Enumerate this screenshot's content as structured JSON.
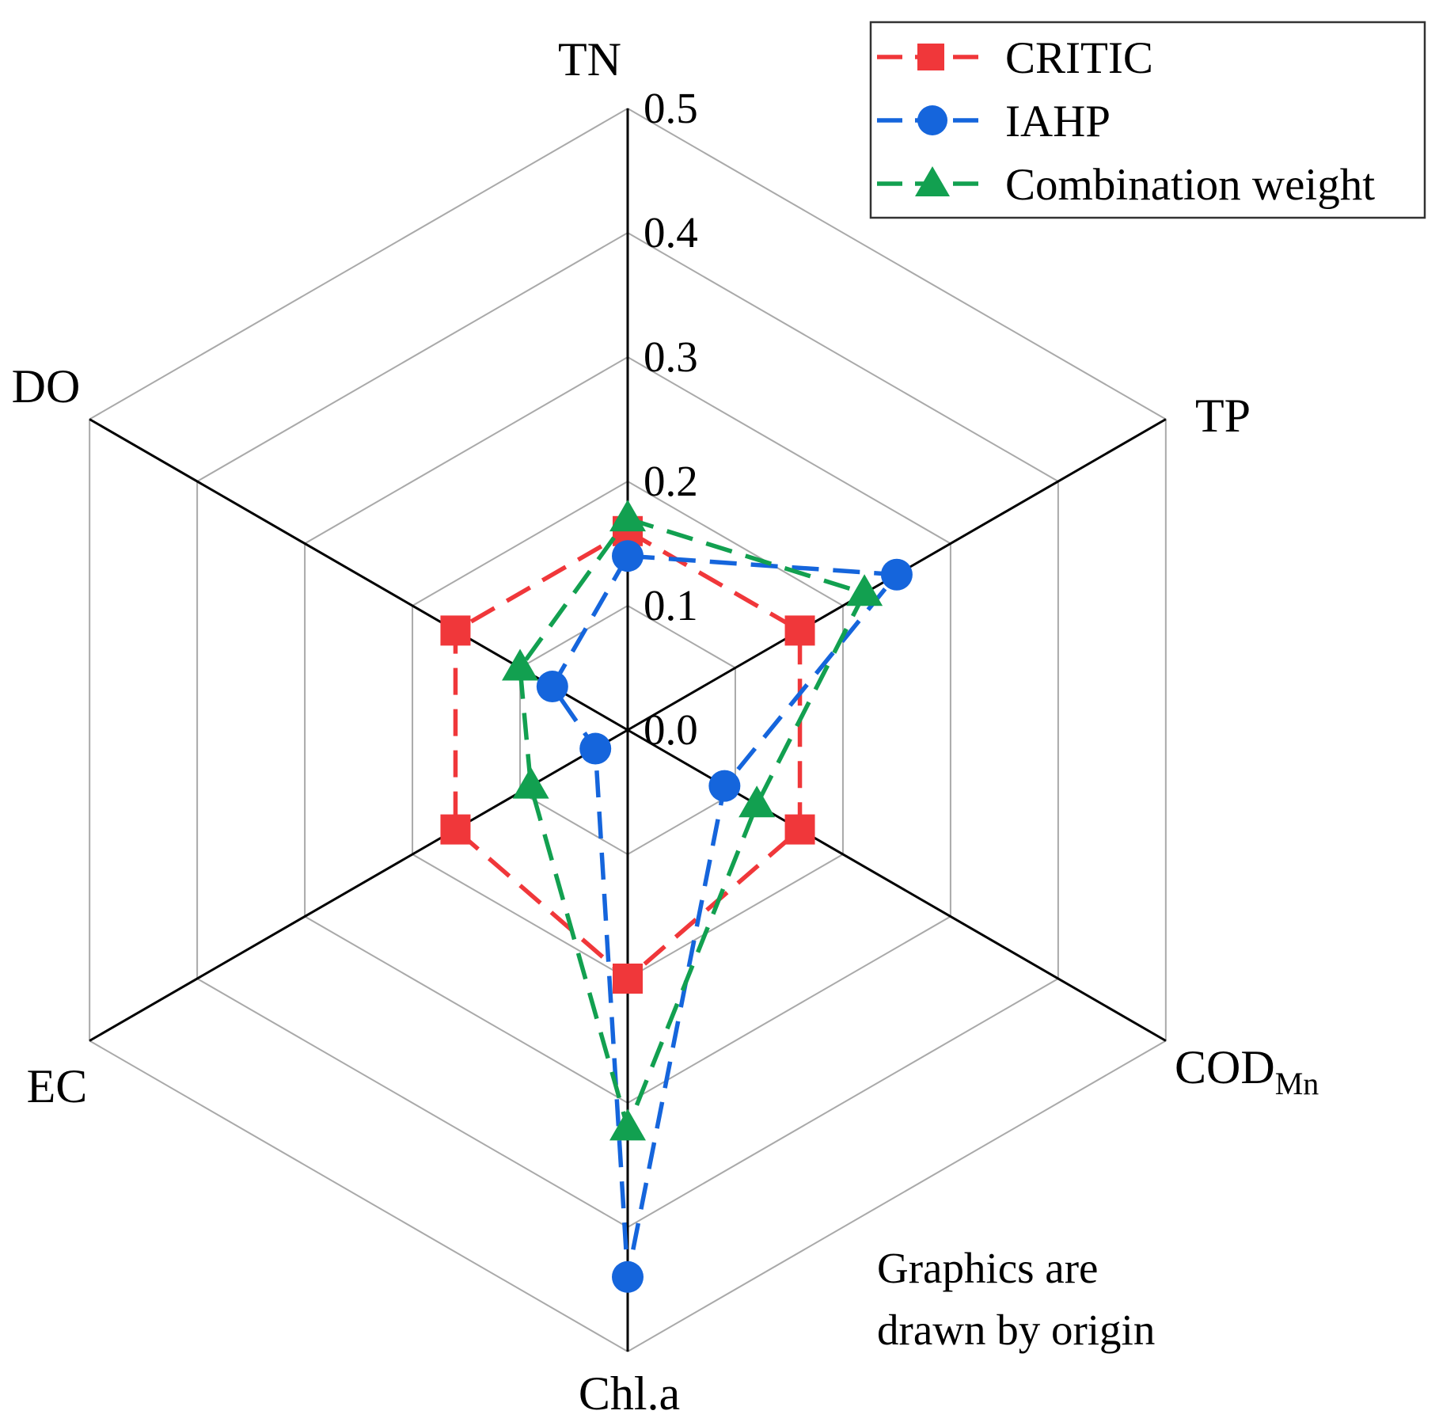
{
  "chart_data": {
    "type": "radar",
    "axes": [
      "TN",
      "TP",
      "CODMn",
      "Chl.a",
      "EC",
      "DO"
    ],
    "axis_labels": [
      {
        "main": "TN",
        "sub": ""
      },
      {
        "main": "TP",
        "sub": ""
      },
      {
        "main": "COD",
        "sub": "Mn"
      },
      {
        "main": "Chl.a",
        "sub": ""
      },
      {
        "main": "EC",
        "sub": ""
      },
      {
        "main": "DO",
        "sub": ""
      }
    ],
    "range": [
      0.0,
      0.5
    ],
    "ticks": [
      0.0,
      0.1,
      0.2,
      0.3,
      0.4,
      0.5
    ],
    "tick_labels": [
      "0.0",
      "0.1",
      "0.2",
      "0.3",
      "0.4",
      "0.5"
    ],
    "grid": true,
    "legend_position": "top-right",
    "series": [
      {
        "name": "CRITIC",
        "color": "#f0373a",
        "marker": "square",
        "values": [
          0.16,
          0.16,
          0.16,
          0.2,
          0.16,
          0.16
        ]
      },
      {
        "name": "IAHP",
        "color": "#1565dc",
        "marker": "circle",
        "values": [
          0.14,
          0.25,
          0.09,
          0.44,
          0.03,
          0.07
        ]
      },
      {
        "name": "Combination weight",
        "color": "#12a050",
        "marker": "triangle",
        "values": [
          0.17,
          0.22,
          0.12,
          0.32,
          0.09,
          0.1
        ]
      }
    ],
    "annotation": [
      "Graphics are",
      "drawn by origin"
    ]
  }
}
